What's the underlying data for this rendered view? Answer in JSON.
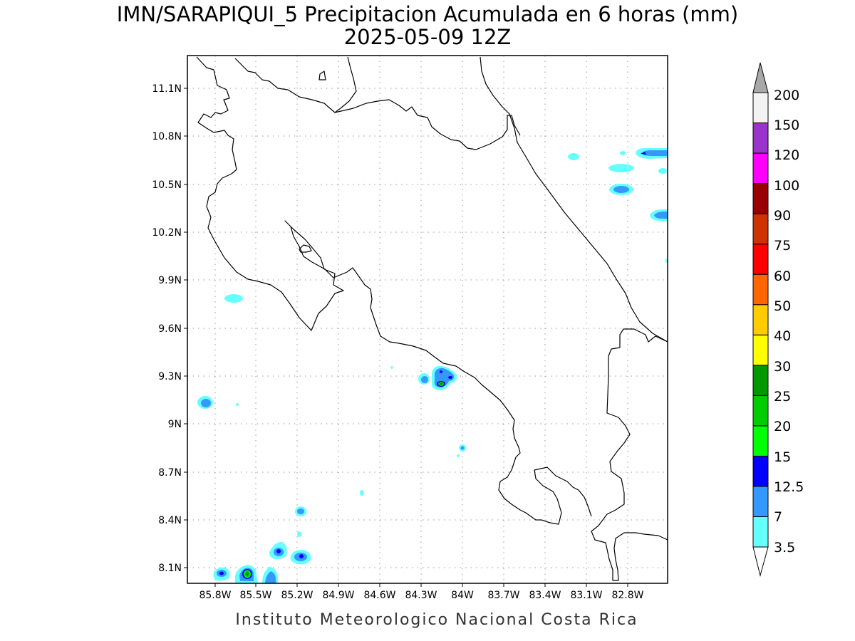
{
  "header": {
    "title": "IMN/SARAPIQUI_5 Precipitacion Acumulada en 6 horas (mm)",
    "subtitle": "2025-05-09 12Z"
  },
  "footer": {
    "credit": "Instituto Meteorologico Nacional Costa Rica"
  },
  "map": {
    "lat_ticks": [
      "11.1N",
      "10.8N",
      "10.5N",
      "10.2N",
      "9.9N",
      "9.6N",
      "9.3N",
      "9N",
      "8.7N",
      "8.4N",
      "8.1N"
    ],
    "lon_ticks": [
      "85.8W",
      "85.5W",
      "85.2W",
      "84.9W",
      "84.6W",
      "84.3W",
      "84W",
      "83.7W",
      "83.4W",
      "83.1W",
      "82.8W"
    ],
    "lon_range": [
      -85.95,
      -82.55
    ],
    "lat_range": [
      8.0,
      11.3
    ],
    "grid": true
  },
  "legend": {
    "levels": [
      "3.5",
      "7",
      "12.5",
      "15",
      "20",
      "25",
      "30",
      "40",
      "50",
      "60",
      "75",
      "90",
      "100",
      "120",
      "150",
      "200"
    ],
    "colors": [
      "#66ffff",
      "#3399ff",
      "#0000ff",
      "#00ff00",
      "#00cc00",
      "#009900",
      "#ffff00",
      "#ffcc00",
      "#ff6600",
      "#ff0000",
      "#cc3300",
      "#990000",
      "#ff00ff",
      "#9933cc",
      "#f2f2f2",
      "#a8a8a8"
    ]
  }
}
